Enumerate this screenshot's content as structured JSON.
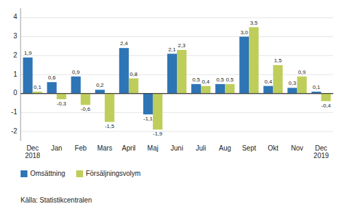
{
  "chart_data": {
    "type": "bar",
    "categories": [
      "Dec\n2018",
      "Jan",
      "Feb",
      "Mars",
      "April",
      "Maj",
      "Juni",
      "Juli",
      "Aug",
      "Sept",
      "Okt",
      "Nov",
      "Dec\n2019"
    ],
    "series": [
      {
        "name": "Omsättning",
        "color": "#2E75B6",
        "values": [
          1.9,
          0.6,
          0.9,
          0.2,
          2.4,
          -1.1,
          2.1,
          0.5,
          0.5,
          3.0,
          0.4,
          0.3,
          0.1
        ],
        "value_labels": [
          "1,9",
          "0,6",
          "0,9",
          "0,2",
          "2,4",
          "-1,1",
          "2,1",
          "0,5",
          "0,5",
          "3,0",
          "0,4",
          "0,3",
          "0,1"
        ]
      },
      {
        "name": "Försäljningsvolym",
        "color": "#BFCE5A",
        "values": [
          0.1,
          -0.3,
          -0.6,
          -1.5,
          0.8,
          -1.9,
          2.3,
          0.4,
          0.5,
          3.5,
          1.5,
          0.9,
          -0.4
        ],
        "value_labels": [
          "0,1",
          "-0,3",
          "-0,6",
          "-1,5",
          "0,8",
          "-1,9",
          "2,3",
          "0,4",
          "0,5",
          "3,5",
          "1,5",
          "0,9",
          "-0,4"
        ]
      }
    ],
    "ylim": [
      -2.5,
      4.5
    ],
    "yticks": [
      -2,
      -1,
      0,
      1,
      2,
      3,
      4
    ],
    "grid": true,
    "legend": "bottom-left",
    "data_labels": true,
    "annotations": [
      "Källa: Statistikcentralen"
    ]
  }
}
